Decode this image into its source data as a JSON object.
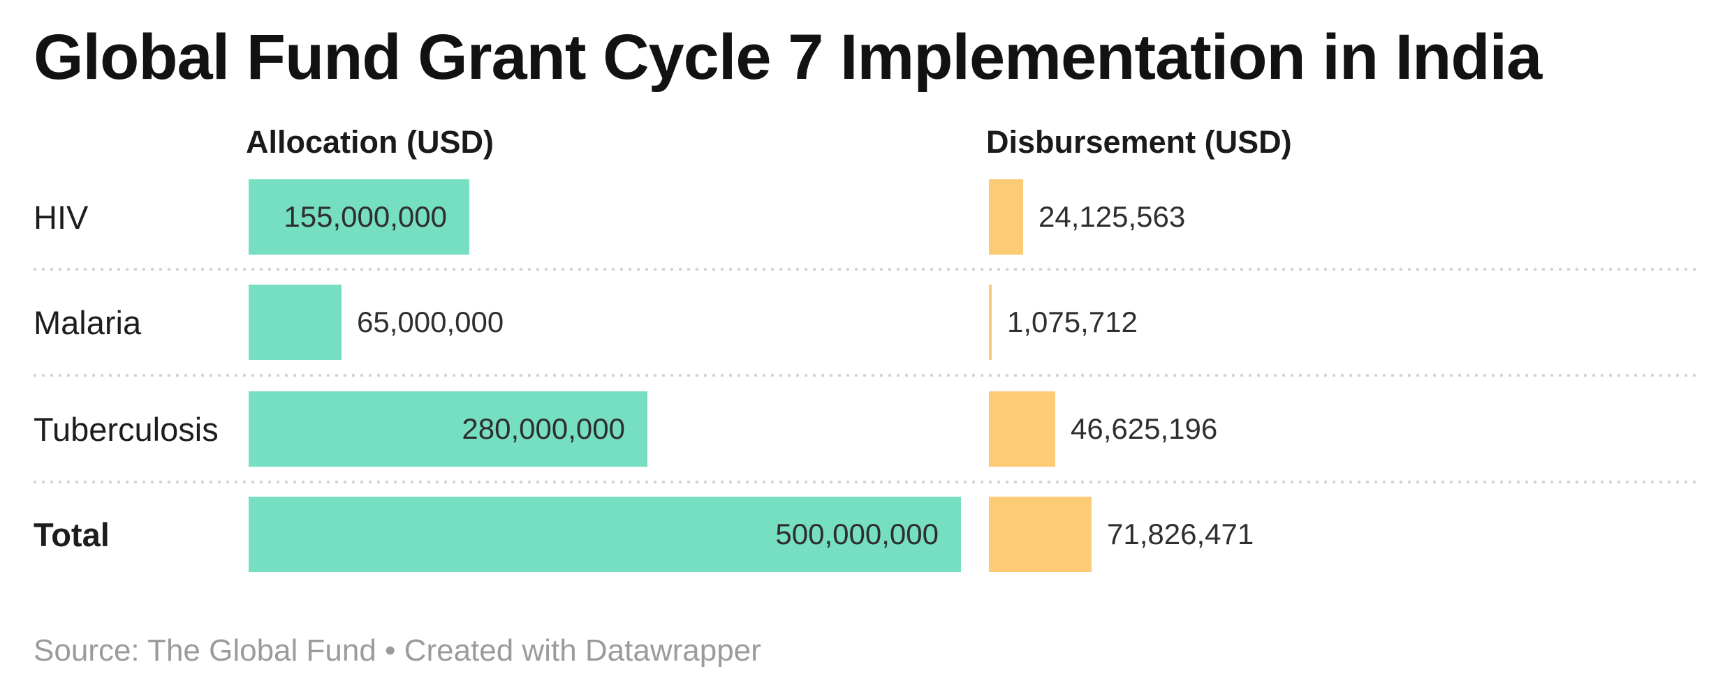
{
  "title": "Global Fund Grant Cycle 7 Implementation in India",
  "columns": {
    "allocation": "Allocation (USD)",
    "disbursement": "Disbursement (USD)"
  },
  "rows": [
    {
      "label": "HIV",
      "allocation_label": "155,000,000",
      "disbursement_label": "24,125,563"
    },
    {
      "label": "Malaria",
      "allocation_label": "65,000,000",
      "disbursement_label": "1,075,712"
    },
    {
      "label": "Tuberculosis",
      "allocation_label": "280,000,000",
      "disbursement_label": "46,625,196"
    },
    {
      "label": "Total",
      "allocation_label": "500,000,000",
      "disbursement_label": "71,826,471"
    }
  ],
  "footer": "Source: The Global Fund • Created with Datawrapper",
  "colors": {
    "allocation_bar": "#76dec1",
    "disbursement_bar": "#fdca76",
    "divider": "#d4d4d4",
    "footer_text": "#9b9b9b",
    "title_text": "#121212"
  },
  "chart_data": {
    "type": "bar",
    "orientation": "horizontal",
    "title": "Global Fund Grant Cycle 7 Implementation in India",
    "categories": [
      "HIV",
      "Malaria",
      "Tuberculosis",
      "Total"
    ],
    "series": [
      {
        "name": "Allocation (USD)",
        "values": [
          155000000,
          65000000,
          280000000,
          500000000
        ]
      },
      {
        "name": "Disbursement (USD)",
        "values": [
          24125563,
          1075712,
          46625196,
          71826471
        ]
      }
    ],
    "xlim": [
      0,
      500000000
    ],
    "grid": false,
    "legend_position": "column-headers",
    "source": "The Global Fund"
  }
}
